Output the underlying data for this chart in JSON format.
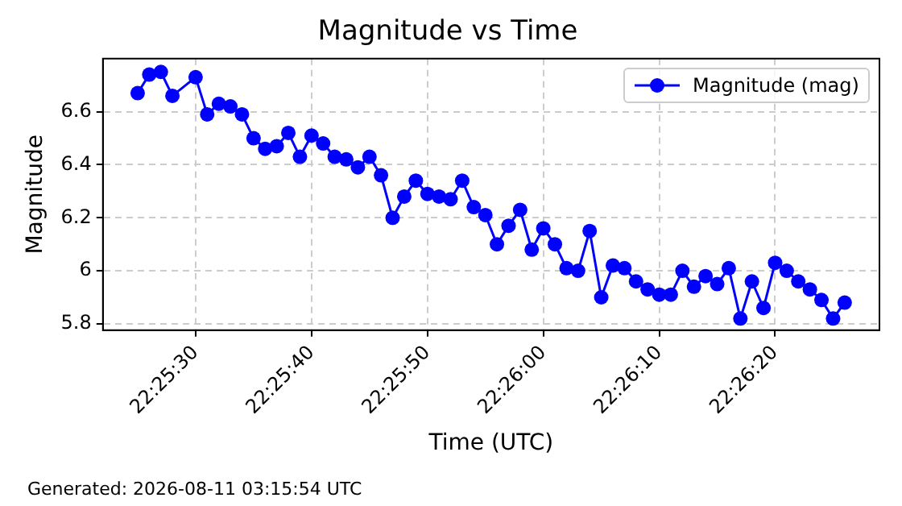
{
  "chart_data": {
    "type": "line",
    "title": "Magnitude vs Time",
    "xlabel": "Time (UTC)",
    "ylabel": "Magnitude",
    "annotations": [
      "Generated: 2026-08-11 03:15:54 UTC"
    ],
    "x": [
      22.423611,
      22.423889,
      22.424167,
      22.424444,
      22.425,
      22.425278,
      22.425556,
      22.425833,
      22.426111,
      22.426389,
      22.426667,
      22.426944,
      22.427222,
      22.4275,
      22.427778,
      22.428056,
      22.428333,
      22.428611,
      22.428889,
      22.429167,
      22.429444,
      22.429722,
      22.43,
      22.430278,
      22.430556,
      22.430833,
      22.431111,
      22.431389,
      22.431667,
      22.431944,
      22.432222,
      22.4325,
      22.432778,
      22.433056,
      22.433333,
      22.433611,
      22.433889,
      22.434167,
      22.434444,
      22.434722,
      22.435,
      22.435278,
      22.435556,
      22.435833,
      22.436111,
      22.436389,
      22.436667,
      22.436944,
      22.437222,
      22.4375,
      22.437778,
      22.438056,
      22.438333,
      22.438611,
      22.438889,
      22.439167,
      22.439444,
      22.439722,
      22.44,
      22.440278,
      22.440556
    ],
    "series": [
      {
        "name": "Magnitude (mag)",
        "color": "#0000ff",
        "values": [
          6.67,
          6.74,
          6.75,
          6.66,
          6.73,
          6.59,
          6.63,
          6.62,
          6.59,
          6.5,
          6.46,
          6.47,
          6.52,
          6.43,
          6.51,
          6.48,
          6.43,
          6.42,
          6.39,
          6.43,
          6.36,
          6.2,
          6.28,
          6.34,
          6.29,
          6.28,
          6.27,
          6.34,
          6.24,
          6.21,
          6.1,
          6.17,
          6.23,
          6.08,
          6.16,
          6.1,
          6.01,
          6,
          6.15,
          5.9,
          6.02,
          6.01,
          5.96,
          5.93,
          5.91,
          5.91,
          6,
          5.94,
          5.98,
          5.95,
          6.01,
          5.82,
          5.96,
          5.86,
          6.03,
          6,
          5.96,
          5.93,
          5.89,
          5.82,
          5.88
        ]
      }
    ],
    "xlim": [
      22.422778,
      22.441389
    ],
    "xticks": [
      {
        "value": 22.425,
        "label": "22:25:30"
      },
      {
        "value": 22.427778,
        "label": "22:25:40"
      },
      {
        "value": 22.430556,
        "label": "22:25:50"
      },
      {
        "value": 22.433333,
        "label": "22:26:00"
      },
      {
        "value": 22.436111,
        "label": "22:26:10"
      },
      {
        "value": 22.438889,
        "label": "22:26:20"
      }
    ],
    "ylim": [
      5.776,
      6.8
    ],
    "yticks": [
      5.8,
      6.0,
      6.2,
      6.4,
      6.6
    ],
    "grid": true,
    "legend": "top right",
    "marker": "circle",
    "line_style": "solid"
  }
}
